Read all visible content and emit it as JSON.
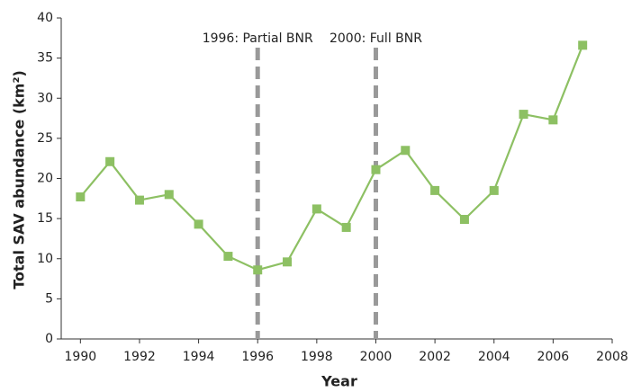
{
  "chart_data": {
    "type": "line",
    "x_label": "Year",
    "y_label": "Total  SAV abundance (km²)",
    "x": [
      1990,
      1991,
      1992,
      1993,
      1994,
      1995,
      1996,
      1997,
      1998,
      1999,
      2000,
      2001,
      2002,
      2003,
      2004,
      2005,
      2006,
      2007
    ],
    "series": [
      {
        "color": "#8dc063",
        "values": [
          17.7,
          22.1,
          17.3,
          18.0,
          14.3,
          10.3,
          8.6,
          9.6,
          16.2,
          13.9,
          21.1,
          23.5,
          18.5,
          14.9,
          18.5,
          28.0,
          27.3,
          36.6
        ]
      }
    ],
    "xlim": [
      1989.35,
      2008
    ],
    "xticks": [
      1990,
      1992,
      1994,
      1996,
      1998,
      2000,
      2002,
      2004,
      2006,
      2008
    ],
    "ylim": [
      0,
      40
    ],
    "yticks": [
      0,
      5,
      10,
      15,
      20,
      25,
      30,
      35,
      40
    ],
    "grid": false,
    "reference_lines": [
      {
        "x": 1996,
        "label": "1996: Partial BNR",
        "color": "#999999"
      },
      {
        "x": 2000,
        "label": "2000: Full BNR",
        "color": "#999999"
      }
    ]
  }
}
